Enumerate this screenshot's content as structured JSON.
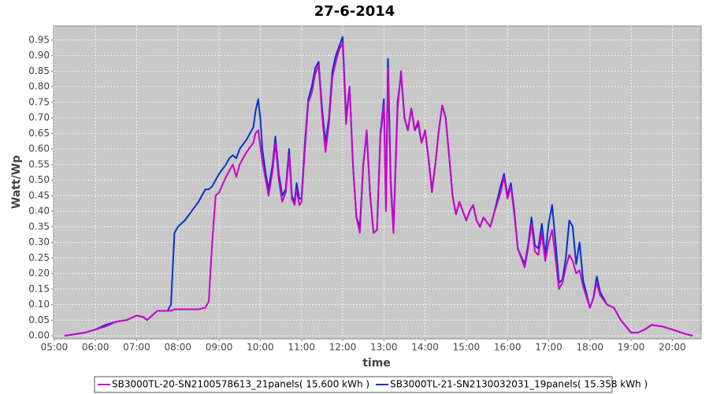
{
  "chart_data": {
    "type": "line",
    "title": "27-6-2014",
    "x_label": "time",
    "y_label": "Watt/Wp",
    "x": [
      315,
      330,
      345,
      360,
      375,
      390,
      405,
      420,
      430,
      435,
      445,
      450,
      465,
      470,
      475,
      480,
      490,
      500,
      510,
      520,
      525,
      530,
      535,
      540,
      550,
      555,
      560,
      565,
      570,
      580,
      590,
      593,
      597,
      600,
      603,
      608,
      612,
      618,
      622,
      627,
      632,
      637,
      642,
      646,
      650,
      653,
      657,
      660,
      665,
      670,
      675,
      680,
      685,
      690,
      695,
      700,
      705,
      710,
      715,
      720,
      725,
      730,
      735,
      740,
      745,
      750,
      755,
      760,
      765,
      770,
      775,
      780,
      783,
      786,
      790,
      794,
      800,
      805,
      810,
      815,
      820,
      825,
      830,
      835,
      840,
      845,
      850,
      855,
      860,
      865,
      870,
      875,
      880,
      885,
      890,
      900,
      905,
      910,
      915,
      920,
      925,
      935,
      940,
      950,
      955,
      960,
      965,
      970,
      975,
      985,
      990,
      995,
      1000,
      1005,
      1010,
      1015,
      1020,
      1025,
      1030,
      1035,
      1040,
      1045,
      1050,
      1055,
      1060,
      1065,
      1070,
      1080,
      1085,
      1090,
      1095,
      1105,
      1115,
      1125,
      1140,
      1150,
      1160,
      1170,
      1185,
      1200,
      1220,
      1230
    ],
    "series": [
      {
        "name": "SB3000TL-20-SN2100578613_21panels( 15.600 kWh )",
        "color": "#cc00cc",
        "values": [
          0,
          0.005,
          0.01,
          0.02,
          0.03,
          0.045,
          0.05,
          0.065,
          0.06,
          0.05,
          0.07,
          0.08,
          0.08,
          0.08,
          0.085,
          0.085,
          0.085,
          0.085,
          0.085,
          0.09,
          0.11,
          0.3,
          0.45,
          0.46,
          0.51,
          0.53,
          0.55,
          0.51,
          0.55,
          0.59,
          0.62,
          0.65,
          0.66,
          0.61,
          0.56,
          0.5,
          0.45,
          0.53,
          0.62,
          0.5,
          0.43,
          0.46,
          0.58,
          0.44,
          0.42,
          0.47,
          0.42,
          0.43,
          0.6,
          0.75,
          0.78,
          0.84,
          0.87,
          0.71,
          0.59,
          0.68,
          0.83,
          0.88,
          0.92,
          0.94,
          0.68,
          0.8,
          0.55,
          0.38,
          0.33,
          0.55,
          0.66,
          0.45,
          0.33,
          0.34,
          0.64,
          0.74,
          0.4,
          0.86,
          0.48,
          0.33,
          0.73,
          0.85,
          0.7,
          0.66,
          0.73,
          0.66,
          0.69,
          0.62,
          0.66,
          0.57,
          0.46,
          0.55,
          0.66,
          0.74,
          0.7,
          0.58,
          0.45,
          0.39,
          0.43,
          0.37,
          0.4,
          0.42,
          0.37,
          0.35,
          0.38,
          0.35,
          0.39,
          0.46,
          0.51,
          0.44,
          0.48,
          0.39,
          0.28,
          0.22,
          0.28,
          0.36,
          0.27,
          0.26,
          0.33,
          0.24,
          0.3,
          0.34,
          0.25,
          0.15,
          0.17,
          0.22,
          0.26,
          0.24,
          0.2,
          0.21,
          0.16,
          0.09,
          0.12,
          0.17,
          0.13,
          0.1,
          0.09,
          0.05,
          0.01,
          0.01,
          0.02,
          0.035,
          0.03,
          0.02,
          0.005,
          0
        ]
      },
      {
        "name": "SB3000TL-21-SN2130032031_19panels( 15.358 kWh )",
        "color": "#0033cc",
        "values": [
          0,
          0.005,
          0.01,
          0.02,
          0.035,
          0.045,
          0.05,
          0.065,
          0.06,
          0.05,
          0.07,
          0.08,
          0.08,
          0.1,
          0.33,
          0.35,
          0.37,
          0.4,
          0.43,
          0.47,
          0.47,
          0.48,
          0.5,
          0.52,
          0.55,
          0.57,
          0.58,
          0.57,
          0.6,
          0.63,
          0.67,
          0.72,
          0.76,
          0.7,
          0.6,
          0.52,
          0.47,
          0.55,
          0.64,
          0.52,
          0.45,
          0.47,
          0.6,
          0.45,
          0.43,
          0.49,
          0.44,
          0.44,
          0.62,
          0.76,
          0.8,
          0.86,
          0.88,
          0.73,
          0.62,
          0.7,
          0.85,
          0.9,
          0.93,
          0.96,
          0.7,
          0.8,
          0.55,
          0.38,
          0.35,
          0.55,
          0.65,
          0.45,
          0.33,
          0.34,
          0.65,
          0.76,
          0.42,
          0.89,
          0.5,
          0.34,
          0.75,
          0.84,
          0.7,
          0.66,
          0.73,
          0.66,
          0.68,
          0.62,
          0.66,
          0.57,
          0.47,
          0.55,
          0.66,
          0.74,
          0.7,
          0.58,
          0.45,
          0.39,
          0.43,
          0.37,
          0.4,
          0.42,
          0.37,
          0.35,
          0.38,
          0.35,
          0.39,
          0.48,
          0.52,
          0.45,
          0.49,
          0.4,
          0.28,
          0.23,
          0.29,
          0.38,
          0.29,
          0.28,
          0.36,
          0.26,
          0.36,
          0.42,
          0.3,
          0.17,
          0.18,
          0.25,
          0.37,
          0.35,
          0.23,
          0.3,
          0.18,
          0.09,
          0.12,
          0.19,
          0.14,
          0.1,
          0.09,
          0.05,
          0.01,
          0.01,
          0.02,
          0.035,
          0.03,
          0.02,
          0.005,
          0
        ]
      }
    ],
    "xlim": [
      299,
      1242
    ],
    "xticks": [
      {
        "value": 300,
        "label": "05:00"
      },
      {
        "value": 360,
        "label": "06:00"
      },
      {
        "value": 420,
        "label": "07:00"
      },
      {
        "value": 480,
        "label": "08:00"
      },
      {
        "value": 540,
        "label": "09:00"
      },
      {
        "value": 600,
        "label": "10:00"
      },
      {
        "value": 660,
        "label": "11:00"
      },
      {
        "value": 720,
        "label": "12:00"
      },
      {
        "value": 780,
        "label": "13:00"
      },
      {
        "value": 840,
        "label": "14:00"
      },
      {
        "value": 900,
        "label": "15:00"
      },
      {
        "value": 960,
        "label": "16:00"
      },
      {
        "value": 1020,
        "label": "17:00"
      },
      {
        "value": 1080,
        "label": "18:00"
      },
      {
        "value": 1140,
        "label": "19:00"
      },
      {
        "value": 1200,
        "label": "20:00"
      }
    ],
    "ylim": [
      -0.01,
      0.995
    ],
    "yticks": [
      {
        "value": 0,
        "label": "0.00"
      },
      0.05,
      {
        "value": 0.1,
        "label": "0.10"
      },
      0.15,
      {
        "value": 0.2,
        "label": "0.20"
      },
      0.25,
      {
        "value": 0.3,
        "label": "0.30"
      },
      0.35,
      {
        "value": 0.4,
        "label": "0.40"
      },
      0.45,
      {
        "value": 0.5,
        "label": "0.50"
      },
      0.55,
      {
        "value": 0.6,
        "label": "0.60"
      },
      0.65,
      {
        "value": 0.7,
        "label": "0.70"
      },
      0.75,
      {
        "value": 0.8,
        "label": "0.80"
      },
      0.85,
      {
        "value": 0.9,
        "label": "0.90"
      },
      0.95
    ],
    "grid": true,
    "legend": "bottom"
  }
}
